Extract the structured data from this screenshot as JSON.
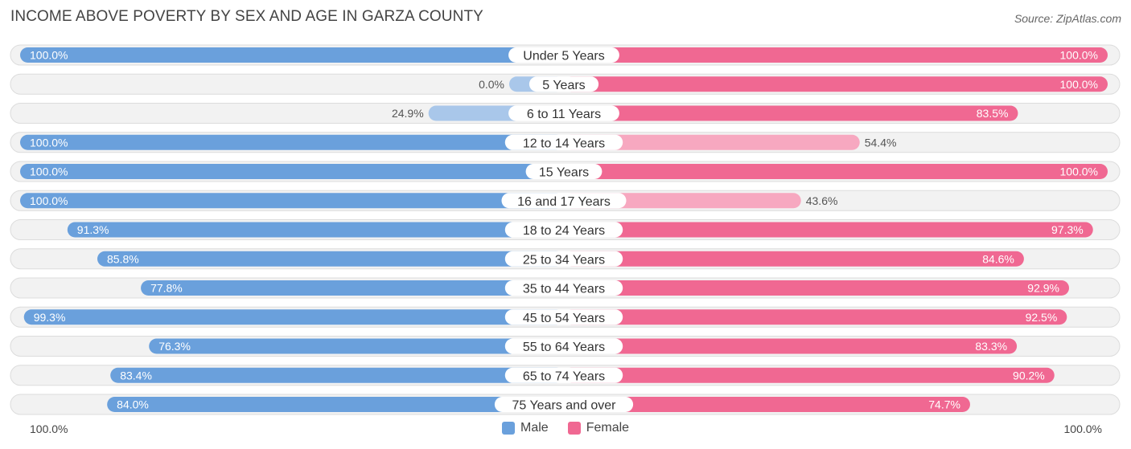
{
  "header": {
    "title": "INCOME ABOVE POVERTY BY SEX AND AGE IN GARZA COUNTY",
    "source": "Source: ZipAtlas.com"
  },
  "axis": {
    "left_label": "100.0%",
    "right_label": "100.0%"
  },
  "legend": {
    "male_label": "Male",
    "female_label": "Female"
  },
  "colors": {
    "male_strong": "#6aa0dc",
    "male_light": "#a9c7ea",
    "female_strong": "#f06892",
    "female_light": "#f7a8c0",
    "row_bg": "#f2f2f2",
    "row_border": "#dcdcdc"
  },
  "chart_data": {
    "type": "bar",
    "orientation": "horizontal-diverging",
    "title": "INCOME ABOVE POVERTY BY SEX AND AGE IN GARZA COUNTY",
    "xlim": [
      0,
      100
    ],
    "unit": "%",
    "categories": [
      "Under 5 Years",
      "5 Years",
      "6 to 11 Years",
      "12 to 14 Years",
      "15 Years",
      "16 and 17 Years",
      "18 to 24 Years",
      "25 to 34 Years",
      "35 to 44 Years",
      "45 to 54 Years",
      "55 to 64 Years",
      "65 to 74 Years",
      "75 Years and over"
    ],
    "series": [
      {
        "name": "Male",
        "values": [
          100.0,
          0.0,
          24.9,
          100.0,
          100.0,
          100.0,
          91.3,
          85.8,
          77.8,
          99.3,
          76.3,
          83.4,
          84.0
        ],
        "labels": [
          "100.0%",
          "0.0%",
          "24.9%",
          "100.0%",
          "100.0%",
          "100.0%",
          "91.3%",
          "85.8%",
          "77.8%",
          "99.3%",
          "76.3%",
          "83.4%",
          "84.0%"
        ]
      },
      {
        "name": "Female",
        "values": [
          100.0,
          100.0,
          83.5,
          54.4,
          100.0,
          43.6,
          97.3,
          84.6,
          92.9,
          92.5,
          83.3,
          90.2,
          74.7
        ],
        "labels": [
          "100.0%",
          "100.0%",
          "83.5%",
          "54.4%",
          "100.0%",
          "43.6%",
          "97.3%",
          "84.6%",
          "92.9%",
          "92.5%",
          "83.3%",
          "90.2%",
          "74.7%"
        ]
      }
    ]
  }
}
